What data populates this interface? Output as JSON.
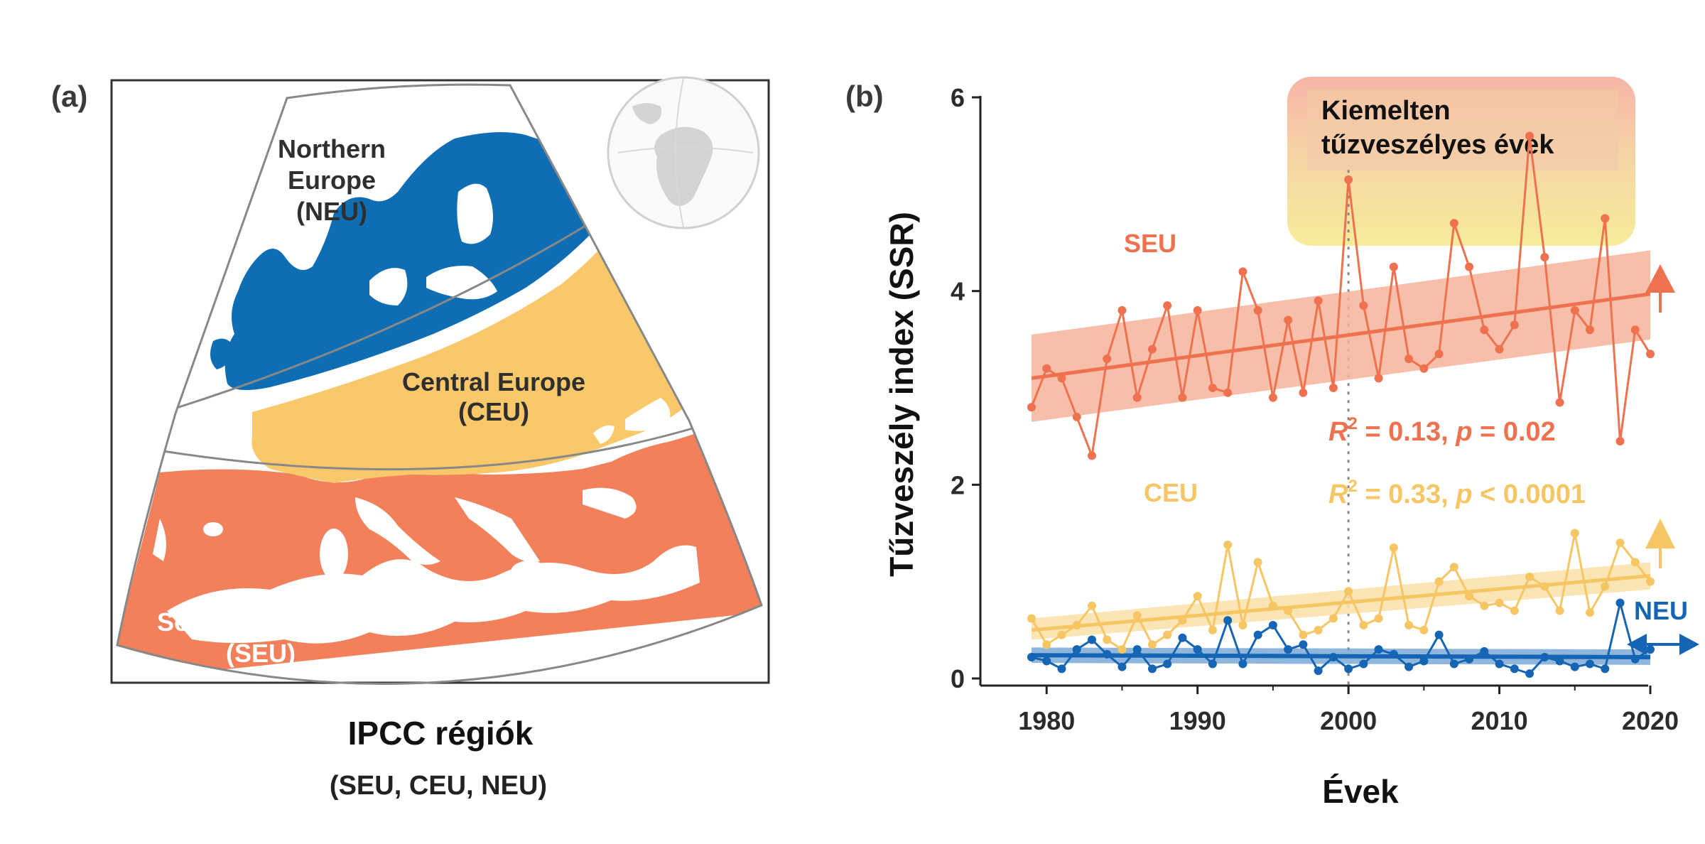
{
  "panel_a": {
    "label": "(a)",
    "regions": {
      "neu": {
        "line1": "Northern",
        "line2": "Europe",
        "line3": "(NEU)",
        "color": "#0f6db4"
      },
      "ceu": {
        "line1": "Central Europe",
        "line2": "(CEU)",
        "color": "#f9c86b"
      },
      "seu": {
        "line1": "Southern Europe",
        "line2": "(SEU)",
        "color": "#f2805b"
      }
    },
    "caption_title": "IPCC régiók",
    "caption_sub": "(SEU, CEU, NEU)"
  },
  "panel_b": {
    "label": "(b)"
  },
  "chart_data": {
    "type": "line",
    "xlabel": "Évek",
    "ylabel": "Tűzveszély index (SSR)",
    "xlim": [
      1977,
      2021
    ],
    "ylim": [
      0,
      6
    ],
    "x_ticks": [
      1980,
      1990,
      2000,
      2010,
      2020
    ],
    "y_ticks": [
      0,
      2,
      4,
      6
    ],
    "annotation": {
      "line1": "Kiemelten",
      "line2": "tűzveszélyes évek",
      "marker_year": 2000
    },
    "series": [
      {
        "name": "SEU",
        "color": "#ee7250",
        "band_color": "#f6b39a",
        "trend_direction": "up",
        "x": [
          1979,
          1980,
          1981,
          1982,
          1983,
          1984,
          1985,
          1986,
          1987,
          1988,
          1989,
          1990,
          1991,
          1992,
          1993,
          1994,
          1995,
          1996,
          1997,
          1998,
          1999,
          2000,
          2001,
          2002,
          2003,
          2004,
          2005,
          2006,
          2007,
          2008,
          2009,
          2010,
          2011,
          2012,
          2013,
          2014,
          2015,
          2016,
          2017,
          2018,
          2019,
          2020
        ],
        "y": [
          2.8,
          3.2,
          3.1,
          2.7,
          2.3,
          3.3,
          3.8,
          2.9,
          3.4,
          3.85,
          2.9,
          3.8,
          3.0,
          2.95,
          4.2,
          3.8,
          2.9,
          3.7,
          2.95,
          3.9,
          3.0,
          5.15,
          3.85,
          3.1,
          4.25,
          3.3,
          3.2,
          3.35,
          4.7,
          4.25,
          3.6,
          3.4,
          3.65,
          5.6,
          4.35,
          2.85,
          3.8,
          3.6,
          4.75,
          2.45,
          3.6,
          3.35
        ],
        "trend": {
          "y_start": 3.1,
          "y_end": 3.97,
          "band_start": [
            2.65,
            3.55
          ],
          "band_end": [
            3.5,
            4.42
          ]
        },
        "stat": {
          "r2_label": "R",
          "r2_sup": "2",
          "text": " = 0.13, ",
          "p_label": "p",
          "p_text": " = 0.02"
        }
      },
      {
        "name": "CEU",
        "color": "#f6c665",
        "band_color": "#fbe0a8",
        "trend_direction": "up",
        "x": [
          1979,
          1980,
          1981,
          1982,
          1983,
          1984,
          1985,
          1986,
          1987,
          1988,
          1989,
          1990,
          1991,
          1992,
          1993,
          1994,
          1995,
          1996,
          1997,
          1998,
          1999,
          2000,
          2001,
          2002,
          2003,
          2004,
          2005,
          2006,
          2007,
          2008,
          2009,
          2010,
          2011,
          2012,
          2013,
          2014,
          2015,
          2016,
          2017,
          2018,
          2019,
          2020
        ],
        "y": [
          0.62,
          0.35,
          0.45,
          0.55,
          0.75,
          0.4,
          0.3,
          0.65,
          0.35,
          0.45,
          0.6,
          0.85,
          0.5,
          1.38,
          0.55,
          1.2,
          0.75,
          0.7,
          0.45,
          0.5,
          0.62,
          0.9,
          0.55,
          0.62,
          1.35,
          0.55,
          0.5,
          1.0,
          1.15,
          0.85,
          0.75,
          0.78,
          0.7,
          1.05,
          0.95,
          0.7,
          1.5,
          0.68,
          0.95,
          1.4,
          1.2,
          1.0
        ],
        "trend": {
          "y_start": 0.5,
          "y_end": 1.06,
          "band_start": [
            0.4,
            0.62
          ],
          "band_end": [
            0.92,
            1.2
          ]
        },
        "stat": {
          "r2_label": "R",
          "r2_sup": "2",
          "text": " = 0.33, ",
          "p_label": "p",
          "p_text": " < 0.0001"
        }
      },
      {
        "name": "NEU",
        "color": "#1565b4",
        "band_color": "#6a9fd2",
        "trend_direction": "both",
        "x": [
          1979,
          1980,
          1981,
          1982,
          1983,
          1984,
          1985,
          1986,
          1987,
          1988,
          1989,
          1990,
          1991,
          1992,
          1993,
          1994,
          1995,
          1996,
          1997,
          1998,
          1999,
          2000,
          2001,
          2002,
          2003,
          2004,
          2005,
          2006,
          2007,
          2008,
          2009,
          2010,
          2011,
          2012,
          2013,
          2014,
          2015,
          2016,
          2017,
          2018,
          2019,
          2020
        ],
        "y": [
          0.22,
          0.18,
          0.1,
          0.3,
          0.4,
          0.25,
          0.12,
          0.3,
          0.1,
          0.15,
          0.42,
          0.3,
          0.15,
          0.6,
          0.15,
          0.45,
          0.55,
          0.3,
          0.35,
          0.08,
          0.22,
          0.1,
          0.15,
          0.3,
          0.25,
          0.12,
          0.18,
          0.45,
          0.15,
          0.2,
          0.28,
          0.15,
          0.1,
          0.05,
          0.22,
          0.18,
          0.12,
          0.15,
          0.1,
          0.78,
          0.2,
          0.3
        ],
        "trend": {
          "y_start": 0.24,
          "y_end": 0.22,
          "band_start": [
            0.16,
            0.32
          ],
          "band_end": [
            0.14,
            0.3
          ]
        }
      }
    ]
  }
}
